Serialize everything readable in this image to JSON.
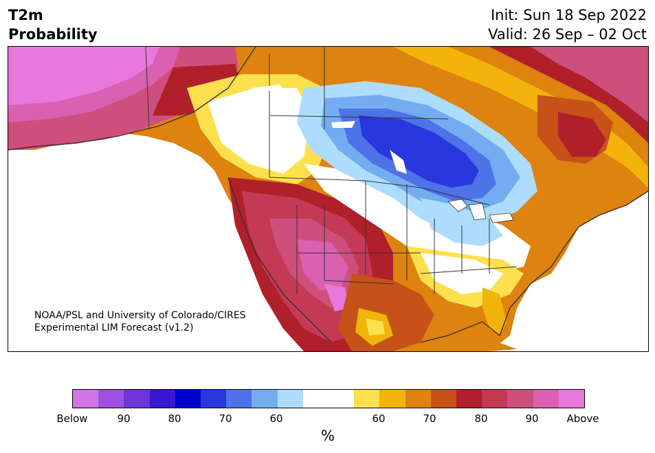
{
  "header": {
    "title_line1": "T2m",
    "title_line2": "Probability",
    "init": "Init: Sun 18 Sep 2022",
    "valid": "Valid: 26 Sep – 02 Oct"
  },
  "map": {
    "credit_line1": "NOAA/PSL and University of Colorado/CIRES",
    "credit_line2": "Experimental LIM Forecast (v1.2)"
  },
  "colorbar": {
    "colors": [
      "#d472e8",
      "#9e50e0",
      "#6e36d8",
      "#3a18d2",
      "#0000cc",
      "#2838dc",
      "#4e72e8",
      "#74acf2",
      "#aedcfc",
      "#ffffff",
      "#ffffff",
      "#fee04e",
      "#f2b40a",
      "#de8210",
      "#c6521a",
      "#b0202a",
      "#c43a56",
      "#cf4f7c",
      "#da60b2",
      "#e878dc"
    ],
    "tick_labels": [
      "Below",
      "90",
      "80",
      "70",
      "60",
      "60",
      "70",
      "80",
      "90",
      "Above"
    ],
    "units": "%"
  },
  "palette": {
    "below_strong": "#0000cc",
    "below_mid": "#4e72e8",
    "below_weak": "#aedcfc",
    "above_weak": "#fee04e",
    "above_mid": "#de8210",
    "above_strong": "#b0202a",
    "above_max": "#e878dc"
  }
}
